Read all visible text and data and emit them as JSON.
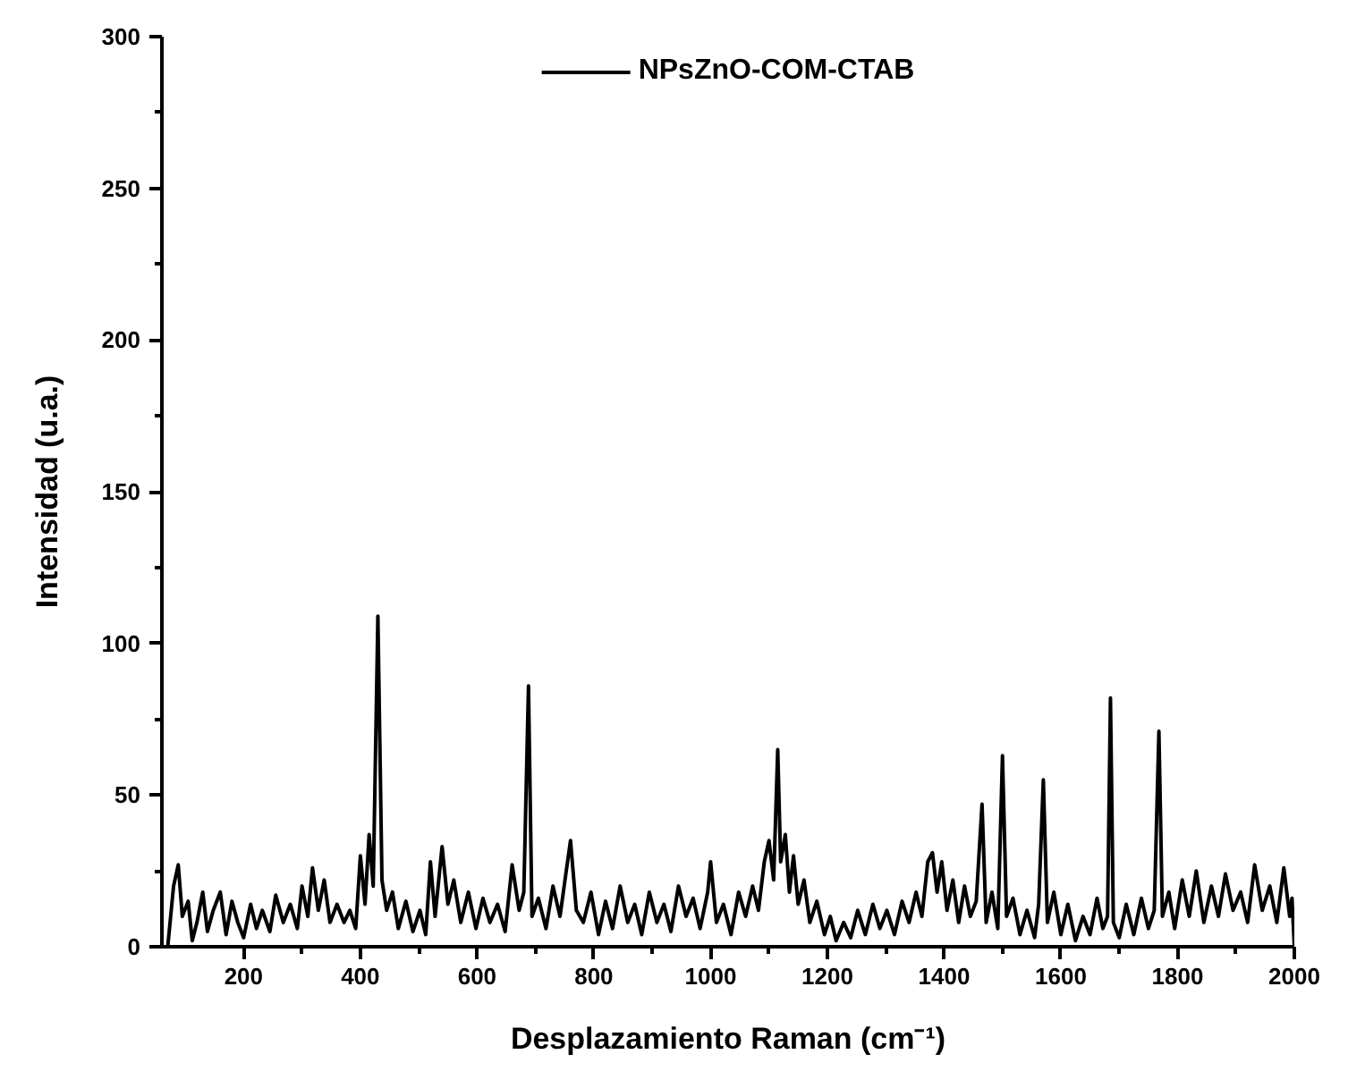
{
  "chart_data": {
    "type": "line",
    "xlabel": "Desplazamiento Raman (cm⁻¹)",
    "ylabel": "Intensidad (u.a.)",
    "xlim": [
      60,
      2000
    ],
    "ylim": [
      0,
      300
    ],
    "xticks": [
      200,
      400,
      600,
      800,
      1000,
      1200,
      1400,
      1600,
      1800,
      2000
    ],
    "yticks": [
      0,
      50,
      100,
      150,
      200,
      250,
      300
    ],
    "grid": false,
    "legend": "top",
    "line_style": "solid",
    "series": [
      {
        "name": "NPsZnO-COM-CTAB",
        "color": "#000000",
        "x": [
          70,
          80,
          88,
          95,
          105,
          112,
          120,
          130,
          138,
          148,
          160,
          170,
          180,
          190,
          200,
          212,
          222,
          232,
          245,
          255,
          268,
          280,
          292,
          300,
          310,
          318,
          328,
          338,
          348,
          360,
          372,
          382,
          392,
          400,
          408,
          415,
          422,
          430,
          437,
          445,
          455,
          465,
          478,
          490,
          502,
          512,
          520,
          528,
          540,
          550,
          560,
          572,
          585,
          598,
          610,
          622,
          635,
          648,
          660,
          672,
          680,
          688,
          694,
          705,
          718,
          730,
          742,
          752,
          760,
          770,
          782,
          795,
          808,
          820,
          832,
          845,
          858,
          870,
          882,
          895,
          908,
          920,
          932,
          945,
          958,
          970,
          982,
          995,
          1000,
          1010,
          1022,
          1035,
          1048,
          1060,
          1072,
          1082,
          1092,
          1100,
          1108,
          1115,
          1120,
          1128,
          1135,
          1142,
          1150,
          1160,
          1170,
          1182,
          1195,
          1205,
          1215,
          1228,
          1240,
          1252,
          1265,
          1278,
          1290,
          1302,
          1315,
          1328,
          1340,
          1352,
          1362,
          1372,
          1380,
          1388,
          1396,
          1405,
          1415,
          1425,
          1435,
          1445,
          1455,
          1465,
          1472,
          1482,
          1492,
          1500,
          1507,
          1518,
          1530,
          1542,
          1555,
          1562,
          1570,
          1577,
          1588,
          1600,
          1612,
          1625,
          1638,
          1650,
          1662,
          1672,
          1680,
          1685,
          1690,
          1700,
          1712,
          1725,
          1738,
          1750,
          1760,
          1768,
          1774,
          1785,
          1795,
          1808,
          1820,
          1832,
          1845,
          1858,
          1870,
          1882,
          1895,
          1908,
          1920,
          1932,
          1945,
          1958,
          1970,
          1982,
          1992,
          1996,
          2000
        ],
        "values": [
          0,
          20,
          27,
          10,
          15,
          2,
          8,
          18,
          5,
          12,
          18,
          4,
          15,
          8,
          3,
          14,
          6,
          12,
          5,
          17,
          8,
          14,
          6,
          20,
          10,
          26,
          12,
          22,
          8,
          14,
          8,
          12,
          6,
          30,
          14,
          37,
          20,
          109,
          22,
          12,
          18,
          6,
          15,
          5,
          12,
          4,
          28,
          10,
          33,
          14,
          22,
          8,
          18,
          6,
          16,
          8,
          14,
          5,
          27,
          12,
          18,
          86,
          10,
          16,
          6,
          20,
          10,
          24,
          35,
          12,
          8,
          18,
          4,
          15,
          6,
          20,
          8,
          14,
          4,
          18,
          8,
          14,
          5,
          20,
          10,
          16,
          6,
          18,
          28,
          8,
          14,
          4,
          18,
          10,
          20,
          12,
          28,
          35,
          22,
          65,
          28,
          37,
          18,
          30,
          14,
          22,
          8,
          15,
          4,
          10,
          2,
          8,
          3,
          12,
          4,
          14,
          6,
          12,
          4,
          15,
          8,
          18,
          10,
          28,
          31,
          18,
          28,
          12,
          22,
          8,
          20,
          10,
          15,
          47,
          8,
          18,
          6,
          63,
          10,
          16,
          4,
          12,
          3,
          14,
          55,
          8,
          18,
          4,
          14,
          2,
          10,
          4,
          16,
          6,
          10,
          82,
          8,
          3,
          14,
          4,
          16,
          6,
          12,
          71,
          10,
          18,
          6,
          22,
          10,
          25,
          8,
          20,
          10,
          24,
          12,
          18,
          8,
          27,
          12,
          20,
          8,
          26,
          10,
          16,
          0
        ]
      }
    ]
  }
}
